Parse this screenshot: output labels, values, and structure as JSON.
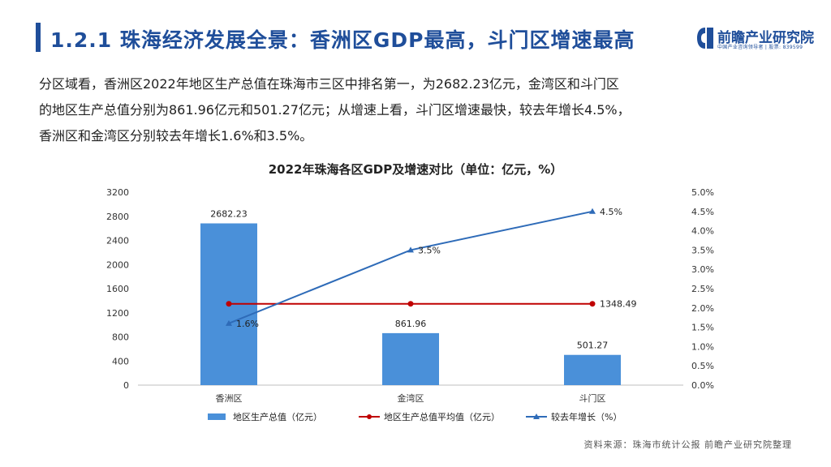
{
  "header": {
    "title": "1.2.1 珠海经济发展全景：香洲区GDP最高，斗门区增速最高",
    "logo_name": "前瞻产业研究院",
    "logo_sub": "中国产业咨询领导者 | 股票: 839599"
  },
  "intro": {
    "lines": [
      "分区域看，香洲区2022年地区生产总值在珠海市三区中排名第一，为2682.23亿元，金湾区和斗门区",
      "的地区生产总值分别为861.96亿元和501.27亿元；从增速上看，斗门区增速最快，较去年增长4.5%，",
      "香洲区和金湾区分别较去年增长1.6%和3.5%。"
    ]
  },
  "chart_data": {
    "type": "bar",
    "title": "2022年珠海各区GDP及增速对比（单位：亿元，%）",
    "categories": [
      "香洲区",
      "金湾区",
      "斗门区"
    ],
    "series": [
      {
        "name": "地区生产总值（亿元）",
        "type": "bar",
        "axis": "left",
        "color": "#4a90d9",
        "values": [
          2682.23,
          861.96,
          501.27
        ],
        "labels": [
          "2682.23",
          "861.96",
          "501.27"
        ]
      },
      {
        "name": "地区生产总值平均值（亿元）",
        "type": "line",
        "axis": "left",
        "color": "#c00000",
        "values": [
          1348.49,
          1348.49,
          1348.49
        ],
        "labels": [
          "",
          "",
          "1348.49"
        ]
      },
      {
        "name": "较去年增长（%）",
        "type": "line",
        "axis": "right",
        "color": "#2e6bb8",
        "values": [
          1.6,
          3.5,
          4.5
        ],
        "labels": [
          "1.6%",
          "3.5%",
          "4.5%"
        ]
      }
    ],
    "y_left": {
      "min": 0,
      "max": 3200,
      "ticks": [
        "0",
        "400",
        "800",
        "1200",
        "1600",
        "2000",
        "2400",
        "2800",
        "3200"
      ]
    },
    "y_right": {
      "min": 0,
      "max": 5,
      "ticks": [
        "0.0%",
        "0.5%",
        "1.0%",
        "1.5%",
        "2.0%",
        "2.5%",
        "3.0%",
        "3.5%",
        "4.0%",
        "4.5%",
        "5.0%"
      ]
    },
    "grid": false,
    "legend": "bottom"
  },
  "footer": {
    "source": "资料来源：珠海市统计公报 前瞻产业研究院整理"
  }
}
